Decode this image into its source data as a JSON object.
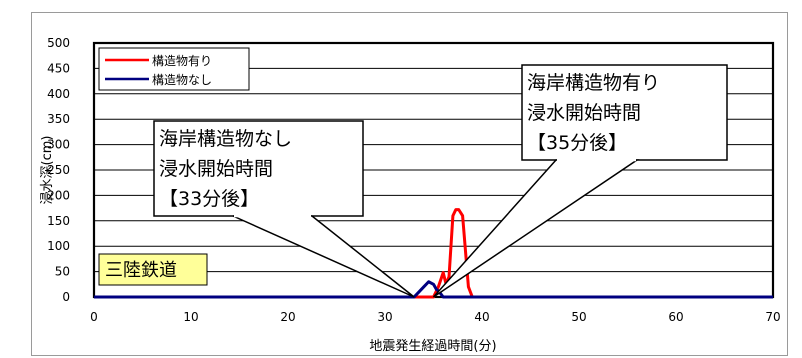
{
  "chart_data": {
    "type": "line",
    "title": "",
    "xlabel": "地震発生経過時間(分)",
    "ylabel": "浸水深(cm)",
    "xlim": [
      0,
      70
    ],
    "ylim": [
      0,
      500
    ],
    "xticks": [
      0,
      10,
      20,
      30,
      40,
      50,
      60,
      70
    ],
    "yticks": [
      0,
      50,
      100,
      150,
      200,
      250,
      300,
      350,
      400,
      450,
      500
    ],
    "grid": true,
    "legend_position": "top-left",
    "series": [
      {
        "name": "構造物有り",
        "color": "#ff0000",
        "x": [
          0,
          35.0,
          35.5,
          36.0,
          36.3,
          36.6,
          37.0,
          37.3,
          37.6,
          38.0,
          38.3,
          38.6,
          39.0,
          70
        ],
        "y": [
          0,
          0,
          20,
          48,
          25,
          40,
          160,
          172,
          172,
          160,
          90,
          20,
          0,
          0
        ]
      },
      {
        "name": "構造物なし",
        "color": "#000080",
        "x": [
          0,
          33.0,
          33.5,
          34.0,
          34.5,
          35.0,
          35.3,
          35.6,
          36.0,
          70
        ],
        "y": [
          0,
          0,
          10,
          20,
          30,
          25,
          15,
          10,
          0,
          0
        ]
      }
    ],
    "annotations": [
      {
        "id": "callout-left",
        "lines": [
          "海岸構造物なし",
          "浸水開始時間",
          "【33分後】"
        ],
        "point_x": 33.0
      },
      {
        "id": "callout-right",
        "lines": [
          "海岸構造物有り",
          "浸水開始時間",
          "【35分後】"
        ],
        "point_x": 35.0
      },
      {
        "id": "label-box",
        "text": "三陸鉄道",
        "background": "#ffff99"
      }
    ]
  }
}
